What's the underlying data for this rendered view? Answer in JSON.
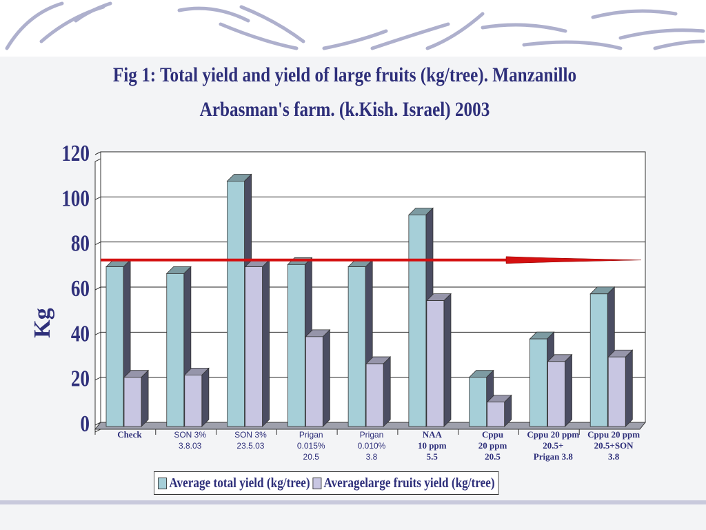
{
  "title_lines": [
    "Fig 1: Total yield and yield of large fruits (kg/tree).  Manzanillo",
    "Arbasman's farm. (k.Kish. Israel)  2003"
  ],
  "colors": {
    "series1": "#a6cfd8",
    "series2": "#c8c6e2",
    "reference_line": "#d41010"
  },
  "chart_data": {
    "type": "bar",
    "title": "Fig 1: Total yield and yield of large fruits (kg/tree).  Manzanillo Arbasman's farm. (k.Kish. Israel)  2003",
    "ylabel": "Kg",
    "xlabel": "",
    "ylim": [
      0,
      120
    ],
    "yticks": [
      0,
      20,
      40,
      60,
      80,
      100,
      120
    ],
    "grid": true,
    "legend_position": "bottom",
    "categories": [
      [
        "Check"
      ],
      [
        "SON 3%",
        "3.8.03"
      ],
      [
        "SON 3%",
        "23.5.03"
      ],
      [
        "Prigan",
        "0.015%",
        "20.5"
      ],
      [
        "Prigan",
        "0.010%",
        "3.8"
      ],
      [
        "NAA",
        "10 ppm",
        "5.5"
      ],
      [
        "Cppu",
        "20 ppm",
        "20.5"
      ],
      [
        "Cppu 20 ppm",
        "20.5+",
        "Prigan 3.8"
      ],
      [
        "Cppu 20 ppm",
        "20.5+SON",
        "3.8"
      ]
    ],
    "series": [
      {
        "name": "Average total yield (kg/tree)",
        "values": [
          69,
          66,
          107,
          70,
          69,
          92,
          20,
          37,
          57
        ]
      },
      {
        "name": "Averagelarge fruits yield (kg/tree)",
        "values": [
          20,
          21,
          69,
          38,
          26,
          54,
          9,
          27,
          29
        ]
      }
    ],
    "reference_line": 72
  }
}
